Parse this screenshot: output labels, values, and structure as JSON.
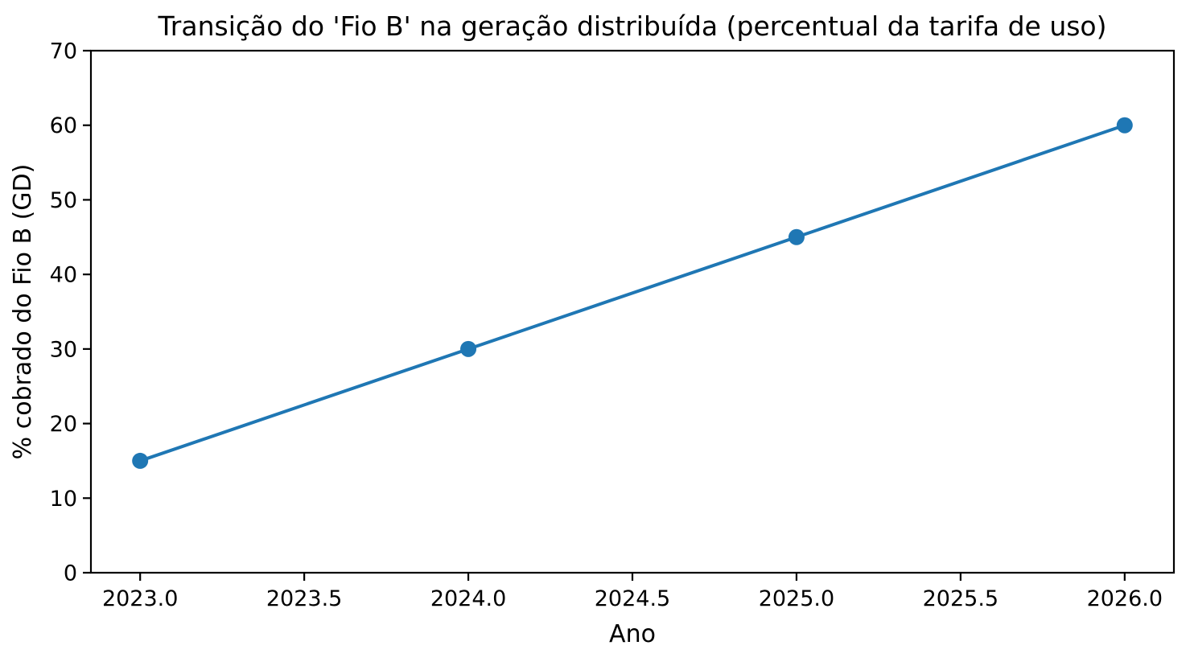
{
  "figure": {
    "background": "#ffffff"
  },
  "chart_data": {
    "type": "line",
    "title": "Transição do 'Fio B' na geração distribuída (percentual da tarifa de uso)",
    "xlabel": "Ano",
    "ylabel": "% cobrado do Fio B (GD)",
    "x": [
      2023,
      2024,
      2025,
      2026
    ],
    "y": [
      15,
      30,
      45,
      60
    ],
    "xlim": [
      2022.85,
      2026.15
    ],
    "ylim": [
      0,
      70
    ],
    "xticks": {
      "values": [
        2023,
        2023.5,
        2024,
        2024.5,
        2025,
        2025.5,
        2026
      ],
      "labels": [
        "2023.0",
        "2023.5",
        "2024.0",
        "2024.5",
        "2025.0",
        "2025.5",
        "2026.0"
      ]
    },
    "yticks": {
      "values": [
        0,
        10,
        20,
        30,
        40,
        50,
        60,
        70
      ],
      "labels": [
        "0",
        "10",
        "20",
        "30",
        "40",
        "50",
        "60",
        "70"
      ]
    },
    "grid": false,
    "legend": false,
    "line_color": "#1f77b4",
    "marker": "circle",
    "marker_color": "#1f77b4",
    "axis_color": "#000000",
    "text_color": "#000000"
  }
}
